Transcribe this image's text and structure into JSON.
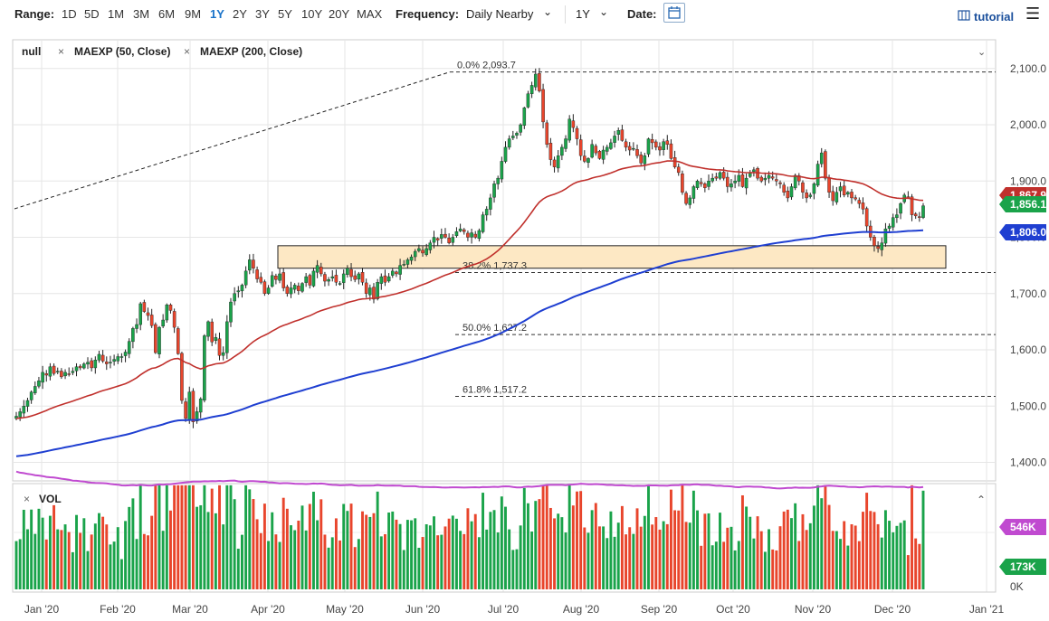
{
  "toolbar": {
    "range_label": "Range:",
    "ranges": [
      "1D",
      "5D",
      "1M",
      "3M",
      "6M",
      "9M",
      "1Y",
      "2Y",
      "3Y",
      "5Y",
      "10Y",
      "20Y",
      "MAX"
    ],
    "active_range": "1Y",
    "frequency_label": "Frequency:",
    "frequency_value": "Daily Nearby",
    "period_value": "1Y",
    "date_label": "Date:",
    "tutorial_label": "tutorial"
  },
  "legend": {
    "symbol": "null",
    "study1": "MAEXP (50, Close)",
    "study2": "MAEXP (200, Close)",
    "vol": "VOL"
  },
  "colors": {
    "up": "#1aa34a",
    "down": "#e8452c",
    "ma50": "#c0302c",
    "ma200": "#1f3fd1",
    "vol_ma": "#c04ad0",
    "zone_fill": "#fde8c4",
    "active": "#1a73c9"
  },
  "chart_data": {
    "type": "candlestick",
    "y_ticks": [
      "2,100.0",
      "2,000.0",
      "1,900.0",
      "1,800.0",
      "1,700.0",
      "1,600.0",
      "1,500.0",
      "1,400.0"
    ],
    "y_tick_values": [
      2100,
      2000,
      1900,
      1800,
      1700,
      1600,
      1500,
      1400
    ],
    "ylim": [
      1380,
      2120
    ],
    "x_ticks": [
      "Jan '20",
      "Feb '20",
      "Mar '20",
      "Apr '20",
      "May '20",
      "Jun '20",
      "Jul '20",
      "Aug '20",
      "Sep '20",
      "Oct '20",
      "Nov '20",
      "Dec '20",
      "Jan '21"
    ],
    "fib_levels": [
      {
        "label": "0.0% 2,093.7",
        "value": 2093.7
      },
      {
        "label": "38.2% 1,737.3",
        "value": 1737.3
      },
      {
        "label": "50.0% 1,627.2",
        "value": 1627.2
      },
      {
        "label": "61.8% 1,517.2",
        "value": 1517.2
      }
    ],
    "support_zone": [
      1745,
      1785
    ],
    "price_tags": [
      {
        "label": "1,867.9",
        "value": 1867.9,
        "color": "#c0302c"
      },
      {
        "label": "1,856.1",
        "value": 1856.1,
        "color": "#1aa34a"
      },
      {
        "label": "1,806.0",
        "value": 1806.0,
        "color": "#1f3fd1"
      }
    ],
    "closes": [
      1482,
      1490,
      1500,
      1510,
      1525,
      1535,
      1545,
      1560,
      1555,
      1570,
      1558,
      1562,
      1552,
      1560,
      1557,
      1562,
      1570,
      1568,
      1575,
      1578,
      1568,
      1582,
      1592,
      1580,
      1575,
      1578,
      1583,
      1588,
      1588,
      1596,
      1615,
      1638,
      1645,
      1682,
      1668,
      1661,
      1643,
      1595,
      1640,
      1653,
      1680,
      1670,
      1640,
      1593,
      1510,
      1478,
      1525,
      1472,
      1490,
      1513,
      1625,
      1650,
      1614,
      1622,
      1590,
      1595,
      1650,
      1685,
      1700,
      1705,
      1715,
      1740,
      1760,
      1745,
      1726,
      1720,
      1700,
      1710,
      1732,
      1725,
      1735,
      1710,
      1700,
      1710,
      1715,
      1705,
      1718,
      1730,
      1715,
      1740,
      1750,
      1735,
      1722,
      1725,
      1730,
      1720,
      1718,
      1735,
      1745,
      1730,
      1725,
      1735,
      1720,
      1700,
      1710,
      1690,
      1720,
      1730,
      1720,
      1730,
      1740,
      1735,
      1750,
      1752,
      1760,
      1765,
      1775,
      1780,
      1772,
      1780,
      1790,
      1800,
      1795,
      1805,
      1800,
      1790,
      1800,
      1810,
      1815,
      1810,
      1800,
      1808,
      1800,
      1812,
      1840,
      1850,
      1870,
      1895,
      1905,
      1935,
      1960,
      1975,
      1980,
      1985,
      2000,
      2030,
      2055,
      2070,
      2090,
      2060,
      2005,
      1965,
      1938,
      1925,
      1945,
      1960,
      1975,
      2010,
      1995,
      1975,
      1945,
      1935,
      1940,
      1965,
      1950,
      1940,
      1955,
      1960,
      1968,
      1980,
      1990,
      1972,
      1960,
      1955,
      1958,
      1945,
      1932,
      1945,
      1975,
      1968,
      1960,
      1955,
      1970,
      1965,
      1940,
      1925,
      1915,
      1880,
      1860,
      1870,
      1890,
      1900,
      1895,
      1888,
      1900,
      1905,
      1905,
      1915,
      1905,
      1890,
      1895,
      1900,
      1910,
      1890,
      1905,
      1915,
      1920,
      1905,
      1900,
      1905,
      1910,
      1905,
      1900,
      1895,
      1880,
      1870,
      1890,
      1910,
      1900,
      1880,
      1870,
      1875,
      1895,
      1930,
      1950,
      1905,
      1880,
      1865,
      1880,
      1890,
      1875,
      1880,
      1870,
      1868,
      1860,
      1850,
      1820,
      1800,
      1785,
      1780,
      1790,
      1815,
      1820,
      1835,
      1840,
      1860,
      1875,
      1872,
      1840,
      1838,
      1835,
      1856
    ],
    "vol_labels": [
      "546K",
      "173K"
    ],
    "vol_zero_label": "0K",
    "vol_ma_value_k": 546,
    "vol_last_value_k": 173
  }
}
